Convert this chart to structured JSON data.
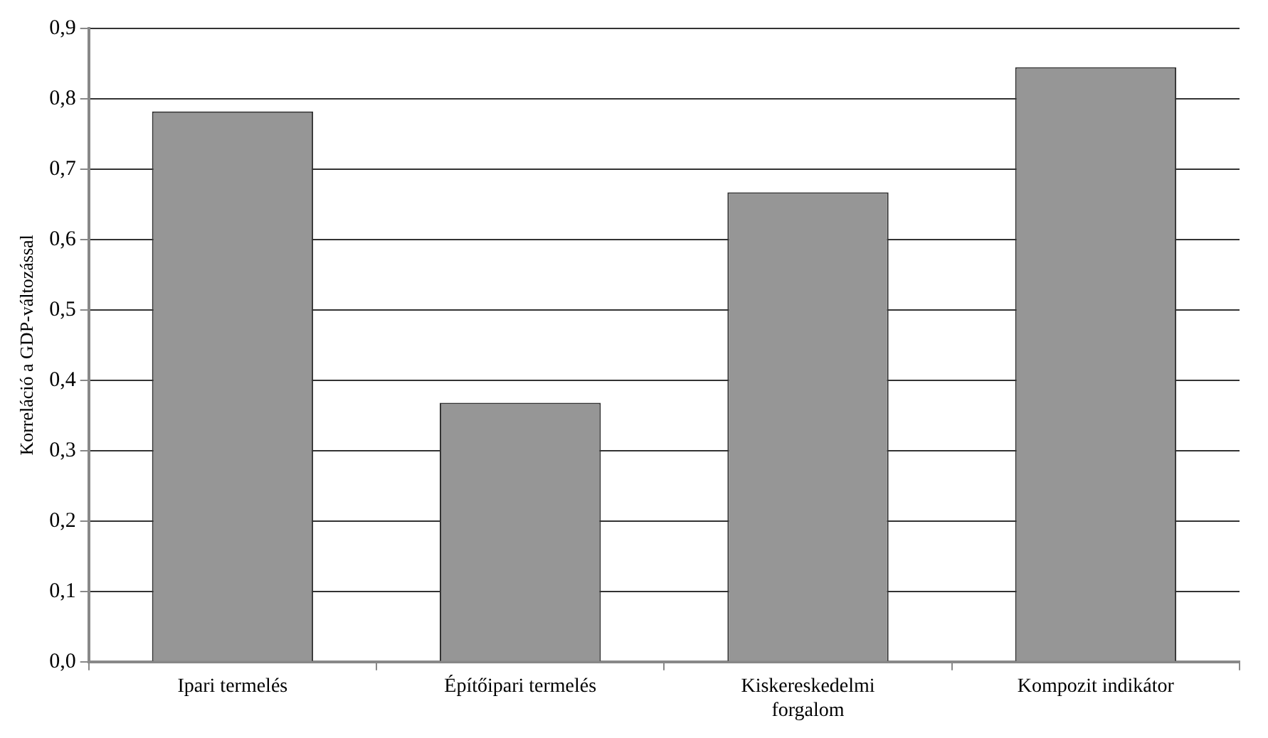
{
  "chart_data": {
    "type": "bar",
    "ylabel": "Korreláció a GDP-változással",
    "categories": [
      "Ipari termelés",
      "Építőipari termelés",
      "Kiskereskedelmi forgalom",
      "Kompozit indikátor"
    ],
    "values": [
      0.782,
      0.368,
      0.667,
      0.845
    ],
    "color": "#969696",
    "ylim": [
      0,
      0.9
    ],
    "yticks": [
      {
        "value": 0,
        "label": "0,0"
      },
      {
        "value": 0.1,
        "label": "0,1"
      },
      {
        "value": 0.2,
        "label": "0,2"
      },
      {
        "value": 0.3,
        "label": "0,3"
      },
      {
        "value": 0.4,
        "label": "0,4"
      },
      {
        "value": 0.5,
        "label": "0,5"
      },
      {
        "value": 0.6,
        "label": "0,6"
      },
      {
        "value": 0.7,
        "label": "0,7"
      },
      {
        "value": 0.8,
        "label": "0,8"
      },
      {
        "value": 0.9,
        "label": "0,9"
      }
    ],
    "grid": "y",
    "legend": false
  }
}
